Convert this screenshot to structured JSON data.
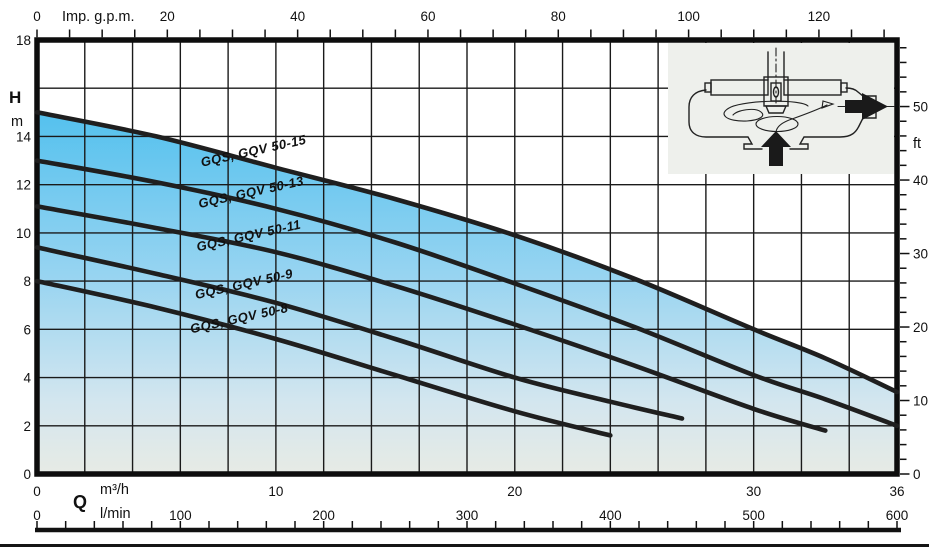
{
  "chart_data": {
    "type": "line",
    "description": "Pump performance curves, head H versus flow Q, shaded envelope under top curve",
    "grid": "on",
    "curve_color": "#1f1f1f",
    "x_axis_m3h": {
      "label": "Q",
      "unit": "m³/h",
      "range": [
        0,
        36
      ],
      "tick_labels": [
        0,
        10,
        20,
        30,
        36
      ],
      "grid_step": 2
    },
    "x_axis_lmin": {
      "unit": "l/min",
      "range": [
        0,
        600
      ],
      "tick_labels": [
        0,
        100,
        200,
        300,
        400,
        500,
        600
      ],
      "tick_step": 20
    },
    "x_axis_impgpm": {
      "label": "Imp. g.p.m.",
      "range": [
        0,
        132
      ],
      "tick_labels": [
        0,
        20,
        40,
        60,
        80,
        100,
        120
      ],
      "tick_step": 5
    },
    "y_axis_m": {
      "label": "H",
      "unit": "m",
      "range": [
        0,
        18
      ],
      "tick_labels": [
        18,
        14,
        12,
        10,
        8,
        6,
        4,
        2,
        0
      ],
      "grid_step": 2
    },
    "y_axis_ft": {
      "unit": "ft",
      "range": [
        0,
        58
      ],
      "tick_labels": [
        50,
        40,
        30,
        20,
        10,
        0
      ],
      "tick_step": 2
    },
    "series": [
      {
        "name": "GQS, GQV 50-15",
        "label_q": 9.1,
        "points_m3h_m": [
          [
            0,
            15.0
          ],
          [
            5,
            14.0
          ],
          [
            10,
            12.7
          ],
          [
            15,
            11.4
          ],
          [
            20,
            9.9
          ],
          [
            25,
            8.1
          ],
          [
            30,
            6.0
          ],
          [
            33,
            4.8
          ],
          [
            36,
            3.4
          ]
        ]
      },
      {
        "name": "GQS, GQV 50-13",
        "label_q": 9.0,
        "points_m3h_m": [
          [
            0,
            13.0
          ],
          [
            5,
            12.1
          ],
          [
            10,
            11.0
          ],
          [
            15,
            9.6
          ],
          [
            20,
            7.9
          ],
          [
            25,
            6.1
          ],
          [
            30,
            4.1
          ],
          [
            33,
            3.1
          ],
          [
            36,
            2.0
          ]
        ]
      },
      {
        "name": "GQS, GQV 50-11",
        "label_q": 8.9,
        "points_m3h_m": [
          [
            0,
            11.1
          ],
          [
            5,
            10.2
          ],
          [
            10,
            9.2
          ],
          [
            15,
            7.8
          ],
          [
            20,
            6.2
          ],
          [
            25,
            4.5
          ],
          [
            30,
            2.7
          ],
          [
            33,
            1.8
          ]
        ]
      },
      {
        "name": "GQS, GQV 50-9",
        "label_q": 8.7,
        "points_m3h_m": [
          [
            0,
            9.4
          ],
          [
            5,
            8.3
          ],
          [
            10,
            7.1
          ],
          [
            15,
            5.6
          ],
          [
            20,
            4.0
          ],
          [
            24,
            3.0
          ],
          [
            27,
            2.3
          ]
        ]
      },
      {
        "name": "GQS, GQV 50-8",
        "label_q": 8.5,
        "points_m3h_m": [
          [
            0,
            8.0
          ],
          [
            5,
            6.9
          ],
          [
            10,
            5.6
          ],
          [
            15,
            4.1
          ],
          [
            20,
            2.6
          ],
          [
            24,
            1.6
          ]
        ]
      }
    ],
    "fill": {
      "under_series": "GQS, GQV 50-15",
      "gradient": [
        "#54c1ee",
        "#97d4f1",
        "#d3e6ef",
        "#e7ebe5"
      ]
    }
  }
}
